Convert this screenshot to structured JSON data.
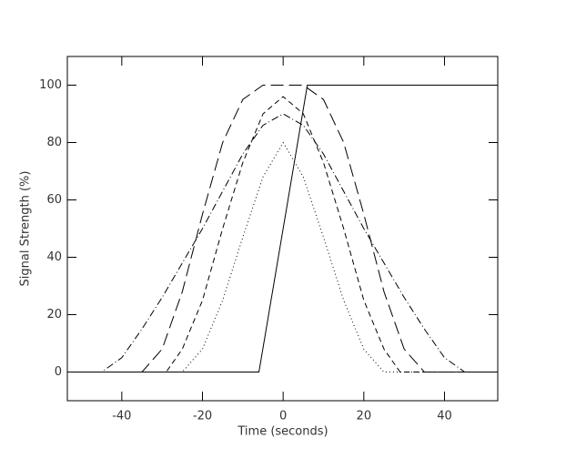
{
  "chart_data": {
    "type": "line",
    "x_label": "Time (seconds)",
    "y_label": "Signal Strength (%)",
    "xlim": [
      -53.5,
      53.2
    ],
    "ylim": [
      -10,
      110
    ],
    "xticks": [
      -40,
      -20,
      0,
      20,
      40
    ],
    "yticks": [
      0,
      20,
      40,
      60,
      80,
      100
    ],
    "series": [
      {
        "dash": "none",
        "color": "#000000",
        "x": [
          -53.5,
          -6,
          6,
          53.2
        ],
        "values": [
          0,
          0,
          100,
          100
        ]
      },
      {
        "dash": "14 6",
        "color": "#000000",
        "x": [
          -53.5,
          -35,
          -30,
          -25,
          -20,
          -15,
          -10,
          -5,
          0,
          5,
          10,
          15,
          20,
          25,
          30,
          35,
          53.2
        ],
        "values": [
          0,
          0,
          8,
          28,
          55,
          80,
          95,
          100,
          100,
          100,
          95,
          80,
          55,
          28,
          8,
          0,
          0
        ]
      },
      {
        "dash": "6 4",
        "color": "#000000",
        "x": [
          -53.5,
          -29,
          -25,
          -20,
          -15,
          -10,
          -5,
          0,
          5,
          10,
          15,
          20,
          25,
          29,
          53.2
        ],
        "values": [
          0,
          0,
          8,
          25,
          50,
          73,
          90,
          96,
          90,
          73,
          50,
          25,
          8,
          0,
          0
        ]
      },
      {
        "dash": "1 3",
        "color": "#000000",
        "x": [
          -53.5,
          -25,
          -20,
          -15,
          -10,
          -5,
          0,
          5,
          10,
          15,
          20,
          25,
          53.2
        ],
        "values": [
          0,
          0,
          8,
          25,
          47,
          68,
          80,
          68,
          47,
          25,
          8,
          0,
          0
        ]
      },
      {
        "dash": "8 3 1 3",
        "color": "#000000",
        "x": [
          -53.5,
          -45,
          -40,
          -35,
          -30,
          -25,
          -20,
          -15,
          -10,
          -5,
          0,
          5,
          10,
          15,
          20,
          25,
          30,
          35,
          40,
          45,
          53.2
        ],
        "values": [
          0,
          0,
          5,
          15,
          26,
          38,
          50,
          63,
          76,
          86,
          90,
          86,
          76,
          63,
          50,
          38,
          26,
          15,
          5,
          0,
          0
        ]
      }
    ]
  }
}
